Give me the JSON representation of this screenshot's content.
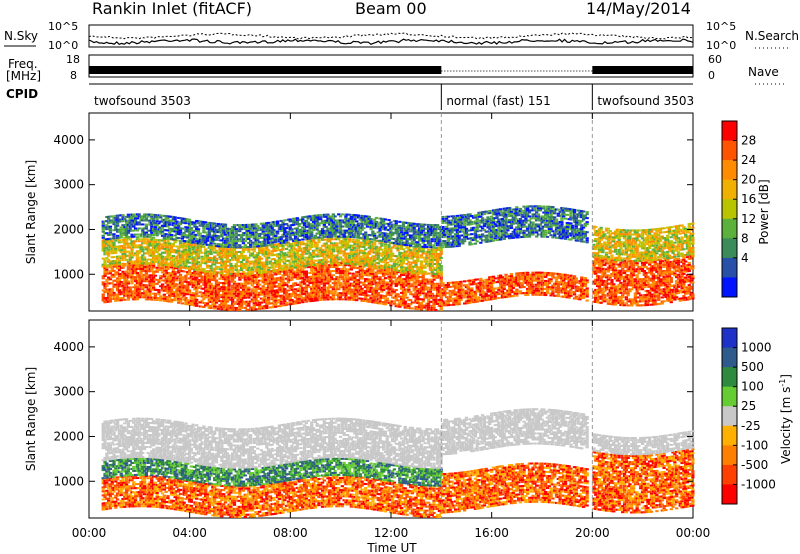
{
  "header": {
    "station": "Rankin Inlet (fitACF)",
    "beam": "Beam 00",
    "date": "14/May/2014"
  },
  "noise_panel": {
    "left_label": "N.Sky",
    "right_label": "N.Search",
    "left_ticks": [
      "10^5",
      "10^0"
    ],
    "right_ticks": [
      "10^5",
      "10^0"
    ]
  },
  "freq_panel": {
    "label_line1": "Freq.",
    "label_line2": "[MHz]",
    "right_label": "Nave",
    "left_ticks": [
      "18",
      "8"
    ],
    "right_ticks": [
      "60",
      "0"
    ]
  },
  "cpid_panel": {
    "label": "CPID",
    "segments": [
      {
        "name": "twofsound 3503",
        "start_h": 0,
        "end_h": 14
      },
      {
        "name": "normal (fast) 151",
        "start_h": 14,
        "end_h": 20
      },
      {
        "name": "twofsound 3503",
        "start_h": 20,
        "end_h": 24
      }
    ]
  },
  "chart_data": [
    {
      "type": "heatmap",
      "quantity": "Power",
      "xlabel": "",
      "ylabel": "Slant Range [km]",
      "xlim": [
        0,
        24
      ],
      "ylim": [
        180,
        4600
      ],
      "yticks": [
        "1000",
        "2000",
        "3000",
        "4000"
      ],
      "colorbar": {
        "label": "Power [dB]",
        "ticks": [
          "28",
          "24",
          "20",
          "16",
          "12",
          "8",
          "4"
        ],
        "colors": [
          "#ff0000",
          "#ff5500",
          "#ff8c00",
          "#f0b000",
          "#b8c400",
          "#5cb03c",
          "#3c8c5a",
          "#2850a8",
          "#0014ff"
        ]
      },
      "bands": [
        {
          "h0": 0.5,
          "h1": 14,
          "r0": 300,
          "r1": 1150,
          "level": "high"
        },
        {
          "h0": 0.5,
          "h1": 14,
          "r0": 1100,
          "r1": 1700,
          "level": "mid"
        },
        {
          "h0": 0.5,
          "h1": 14,
          "r0": 1700,
          "r1": 2200,
          "level": "low"
        },
        {
          "h0": 14,
          "h1": 19.8,
          "r0": 400,
          "r1": 900,
          "level": "high"
        },
        {
          "h0": 14,
          "h1": 19.8,
          "r0": 1700,
          "r1": 2400,
          "level": "low"
        },
        {
          "h0": 20,
          "h1": 24,
          "r0": 400,
          "r1": 1400,
          "level": "high"
        },
        {
          "h0": 20,
          "h1": 24,
          "r0": 1400,
          "r1": 2100,
          "level": "mid"
        }
      ]
    },
    {
      "type": "heatmap",
      "quantity": "Velocity",
      "xlabel": "Time UT",
      "ylabel": "Slant Range [km]",
      "xlim": [
        0,
        24
      ],
      "ylim": [
        180,
        4600
      ],
      "xticks": [
        "00:00",
        "04:00",
        "08:00",
        "12:00",
        "16:00",
        "20:00",
        "00:00"
      ],
      "yticks": [
        "1000",
        "2000",
        "3000",
        "4000"
      ],
      "colorbar": {
        "label": "Velocity [m s",
        "label_sup": "-1",
        "label_end": "]",
        "ticks": [
          "1000",
          "500",
          "100",
          "25",
          "-25",
          "-100",
          "-500",
          "-1000"
        ],
        "colors": [
          "#1e32c8",
          "#2f5a8c",
          "#2e8a3e",
          "#66cc33",
          "#c8c8c8",
          "#ffb000",
          "#ff8000",
          "#ff4000",
          "#ff0000"
        ]
      },
      "bands": [
        {
          "h0": 0.5,
          "h1": 14,
          "r0": 300,
          "r1": 1000,
          "level": "neg"
        },
        {
          "h0": 0.5,
          "h1": 14,
          "r0": 1000,
          "r1": 1400,
          "level": "pos"
        },
        {
          "h0": 0.5,
          "h1": 14,
          "r0": 1400,
          "r1": 2300,
          "level": "zero"
        },
        {
          "h0": 14,
          "h1": 19.8,
          "r0": 400,
          "r1": 1300,
          "level": "neg"
        },
        {
          "h0": 14,
          "h1": 19.8,
          "r0": 1700,
          "r1": 2500,
          "level": "zero"
        },
        {
          "h0": 20,
          "h1": 24,
          "r0": 400,
          "r1": 1700,
          "level": "neg"
        },
        {
          "h0": 20,
          "h1": 24,
          "r0": 1700,
          "r1": 2100,
          "level": "zero"
        }
      ]
    }
  ]
}
